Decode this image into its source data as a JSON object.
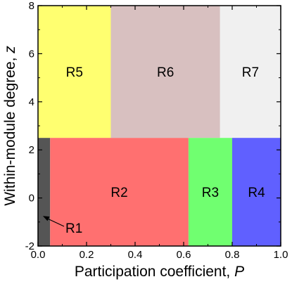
{
  "chart_data": {
    "type": "heatmap",
    "title": "",
    "xlabel": "Participation coefficient, ",
    "xlabel_var": "P",
    "ylabel": "Within-module degree, ",
    "ylabel_var": "z",
    "xlim": [
      0,
      1
    ],
    "ylim": [
      -2,
      8
    ],
    "xticks": [
      "0.0",
      "0.2",
      "0.4",
      "0.6",
      "0.8",
      "1.0"
    ],
    "yticks": [
      "-2",
      "0",
      "2",
      "4",
      "6",
      "8"
    ],
    "xtick_values": [
      0,
      0.2,
      0.4,
      0.6,
      0.8,
      1.0
    ],
    "ytick_values": [
      -2,
      0,
      2,
      4,
      6,
      8
    ],
    "grid": false,
    "regions": [
      {
        "label": "R1",
        "x": [
          0.0,
          0.05
        ],
        "y": [
          -2,
          2.5
        ],
        "color": "#555555"
      },
      {
        "label": "R2",
        "x": [
          0.05,
          0.62
        ],
        "y": [
          -2,
          2.5
        ],
        "color": "#ff7070"
      },
      {
        "label": "R3",
        "x": [
          0.62,
          0.8
        ],
        "y": [
          -2,
          2.5
        ],
        "color": "#70ff70"
      },
      {
        "label": "R4",
        "x": [
          0.8,
          1.0
        ],
        "y": [
          -2,
          2.5
        ],
        "color": "#6060ff"
      },
      {
        "label": "R5",
        "x": [
          0.0,
          0.3
        ],
        "y": [
          2.5,
          8
        ],
        "color": "#ffff70"
      },
      {
        "label": "R6",
        "x": [
          0.3,
          0.75
        ],
        "y": [
          2.5,
          8
        ],
        "color": "#d8c0c0"
      },
      {
        "label": "R7",
        "x": [
          0.75,
          1.0
        ],
        "y": [
          2.5,
          8
        ],
        "color": "#f0f0f0"
      }
    ]
  }
}
